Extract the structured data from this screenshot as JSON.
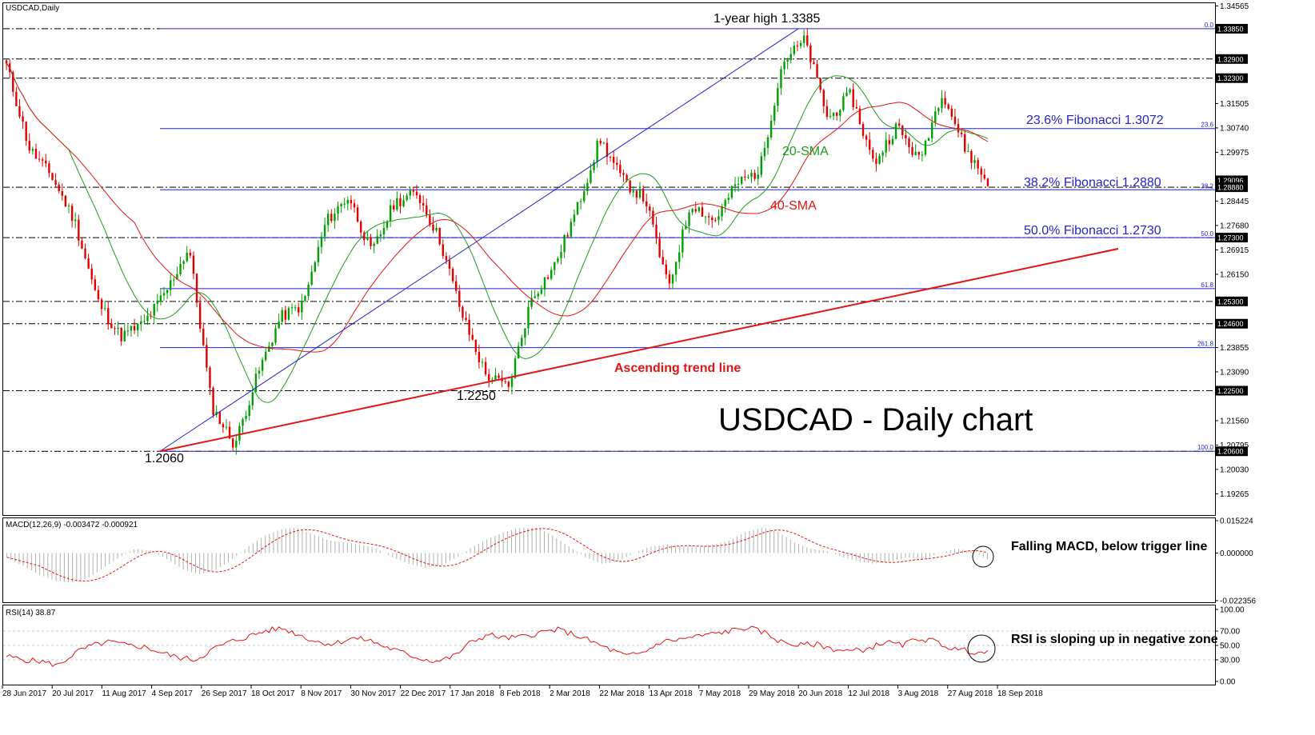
{
  "chart_data": [
    {
      "type": "candlestick",
      "symbol_label": "USDCAD,Daily",
      "title": "USDCAD - Daily chart",
      "ylim": [
        1.186,
        1.3465
      ],
      "y_ticks": [
        "1.34565",
        "1.33850",
        "1.32900",
        "1.32300",
        "1.31505",
        "1.30740",
        "1.29975",
        "1.29096",
        "1.28880",
        "1.28445",
        "1.27680",
        "1.27300",
        "1.26915",
        "1.26150",
        "1.25300",
        "1.24600",
        "1.23855",
        "1.23090",
        "1.22500",
        "1.21560",
        "1.20795",
        "1.20600",
        "1.20030",
        "1.19265"
      ],
      "highlighted_levels": [
        "1.33850",
        "1.32900",
        "1.32300",
        "1.29096",
        "1.28880",
        "1.27300",
        "1.25300",
        "1.24600",
        "1.22500",
        "1.20600"
      ],
      "x_ticks": [
        "28 Jun 2017",
        "20 Jul 2017",
        "11 Aug 2017",
        "4 Sep 2017",
        "26 Sep 2017",
        "18 Oct 2017",
        "8 Nov 2017",
        "30 Nov 2017",
        "22 Dec 2017",
        "17 Jan 2018",
        "8 Feb 2018",
        "2 Mar 2018",
        "22 Mar 2018",
        "13 Apr 2018",
        "7 May 2018",
        "29 May 2018",
        "20 Jun 2018",
        "12 Jul 2018",
        "3 Aug 2018",
        "27 Aug 2018",
        "18 Sep 2018"
      ],
      "key_closes": [
        1.327,
        1.301,
        1.292,
        1.278,
        1.253,
        1.242,
        1.246,
        1.256,
        1.27,
        1.22,
        1.208,
        1.23,
        1.248,
        1.252,
        1.278,
        1.286,
        1.268,
        1.284,
        1.287,
        1.272,
        1.248,
        1.23,
        1.226,
        1.254,
        1.264,
        1.282,
        1.304,
        1.291,
        1.285,
        1.257,
        1.284,
        1.278,
        1.29,
        1.294,
        1.328,
        1.335,
        1.31,
        1.318,
        1.296,
        1.308,
        1.297,
        1.319,
        1.301,
        1.29
      ],
      "series": [
        {
          "name": "20-SMA",
          "color": "#1f9a1f"
        },
        {
          "name": "40-SMA",
          "color": "#e01515"
        }
      ],
      "fibonacci": [
        {
          "level": "0.0",
          "price": 1.3385
        },
        {
          "level": "23.6",
          "price": 1.3072,
          "label": "23.6% Fibonacci 1.3072"
        },
        {
          "level": "38.2",
          "price": 1.288,
          "label": "38.2% Fibonacci 1.2880"
        },
        {
          "level": "50.0",
          "price": 1.273,
          "label": "50.0% Fibonacci 1.2730"
        },
        {
          "level": "61.8",
          "price": 1.257
        },
        {
          "level": "261.8",
          "price": 1.2385
        },
        {
          "level": "100.0",
          "price": 1.206
        }
      ],
      "annotations": {
        "high": "1-year high 1.3385",
        "low1": "1.2060",
        "low2": "1.2250",
        "trend": "Ascending trend line",
        "sma20": "20-SMA",
        "sma40": "40-SMA"
      },
      "trend_line": {
        "from": [
          "4 Sep 2017",
          1.206
        ],
        "to": [
          "after 18 Sep 2018",
          1.269
        ]
      }
    },
    {
      "type": "macd",
      "label": "MACD(12,26,9) -0.003472 -0.000921",
      "ylim": [
        -0.022356,
        0.015224
      ],
      "y_ticks": [
        "0.015224",
        "0.000000",
        "-0.022356"
      ],
      "histogram": [
        -0.002,
        -0.006,
        -0.01,
        -0.013,
        -0.014,
        -0.012,
        -0.007,
        -0.002,
        0.002,
        0.001,
        -0.003,
        -0.008,
        -0.01,
        -0.008,
        -0.003,
        0.003,
        0.008,
        0.011,
        0.012,
        0.009,
        0.006,
        0.005,
        0.004,
        0.002,
        -0.002,
        -0.005,
        -0.007,
        -0.006,
        -0.002,
        0.003,
        0.007,
        0.01,
        0.012,
        0.012,
        0.008,
        0.003,
        -0.002,
        -0.005,
        -0.004,
        0.0,
        0.003,
        0.004,
        0.003,
        0.003,
        0.004,
        0.006,
        0.01,
        0.012,
        0.01,
        0.005,
        0.002,
        0.001,
        -0.002,
        -0.004,
        -0.005,
        -0.004,
        -0.002,
        -0.003,
        0.0,
        0.002,
        0.001,
        -0.003
      ],
      "annotation": "Falling MACD, below trigger line"
    },
    {
      "type": "rsi",
      "label": "RSI(14) 38.87",
      "ylim": [
        0,
        100
      ],
      "y_ticks": [
        "100.00",
        "70.00",
        "50.00",
        "30.00",
        "0.00"
      ],
      "values": [
        35,
        30,
        28,
        22,
        40,
        50,
        55,
        50,
        48,
        40,
        33,
        30,
        45,
        55,
        62,
        70,
        74,
        65,
        55,
        52,
        60,
        58,
        48,
        40,
        32,
        28,
        35,
        55,
        65,
        60,
        62,
        68,
        72,
        65,
        55,
        45,
        35,
        40,
        55,
        58,
        62,
        66,
        70,
        75,
        68,
        55,
        50,
        52,
        45,
        42,
        45,
        55,
        50,
        60,
        55,
        45,
        42,
        39
      ],
      "annotation": "RSI is sloping up in negative zone"
    }
  ]
}
